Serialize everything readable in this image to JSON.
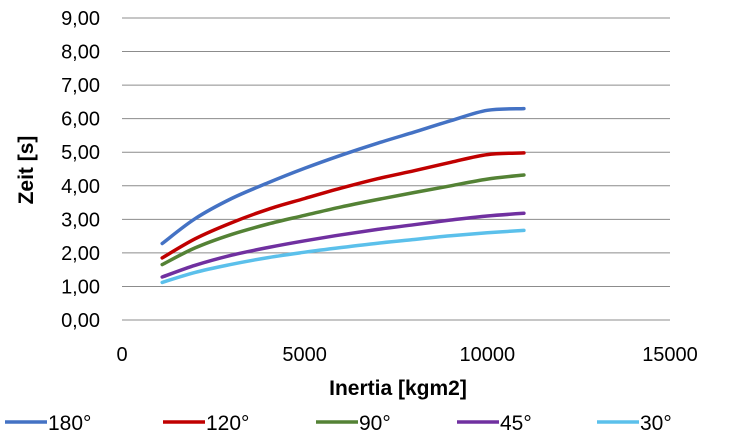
{
  "chart_data": {
    "type": "line",
    "title": "",
    "xlabel": "Inertia [kgm2]",
    "ylabel": "Zeit [s]",
    "xlim": [
      0,
      15000
    ],
    "ylim": [
      0,
      9
    ],
    "x_ticks": [
      0,
      5000,
      10000,
      15000
    ],
    "x_tick_labels": [
      "0",
      "5000",
      "10000",
      "15000"
    ],
    "y_ticks": [
      0,
      1,
      2,
      3,
      4,
      5,
      6,
      7,
      8,
      9
    ],
    "y_tick_labels": [
      "0,00",
      "1,00",
      "2,00",
      "3,00",
      "4,00",
      "5,00",
      "6,00",
      "7,00",
      "8,00",
      "9,00"
    ],
    "grid": "horizontal",
    "legend_position": "bottom",
    "x": [
      1100,
      2000,
      3000,
      4000,
      5000,
      6000,
      7000,
      8000,
      9000,
      10000,
      11000
    ],
    "series": [
      {
        "name": "180°",
        "color": "#4472C4",
        "values": [
          2.28,
          3.02,
          3.62,
          4.09,
          4.52,
          4.91,
          5.27,
          5.6,
          5.94,
          6.25,
          6.3
        ]
      },
      {
        "name": "120°",
        "color": "#C00000",
        "values": [
          1.85,
          2.42,
          2.9,
          3.3,
          3.62,
          3.93,
          4.21,
          4.45,
          4.7,
          4.93,
          4.98
        ]
      },
      {
        "name": "90°",
        "color": "#548235",
        "values": [
          1.65,
          2.15,
          2.55,
          2.86,
          3.12,
          3.37,
          3.59,
          3.8,
          4.0,
          4.2,
          4.32
        ]
      },
      {
        "name": "45°",
        "color": "#7030A0",
        "values": [
          1.28,
          1.63,
          1.93,
          2.16,
          2.36,
          2.54,
          2.7,
          2.84,
          2.98,
          3.1,
          3.18
        ]
      },
      {
        "name": "30°",
        "color": "#5BC0EB",
        "values": [
          1.12,
          1.42,
          1.66,
          1.86,
          2.02,
          2.16,
          2.29,
          2.4,
          2.51,
          2.6,
          2.67
        ]
      }
    ]
  }
}
